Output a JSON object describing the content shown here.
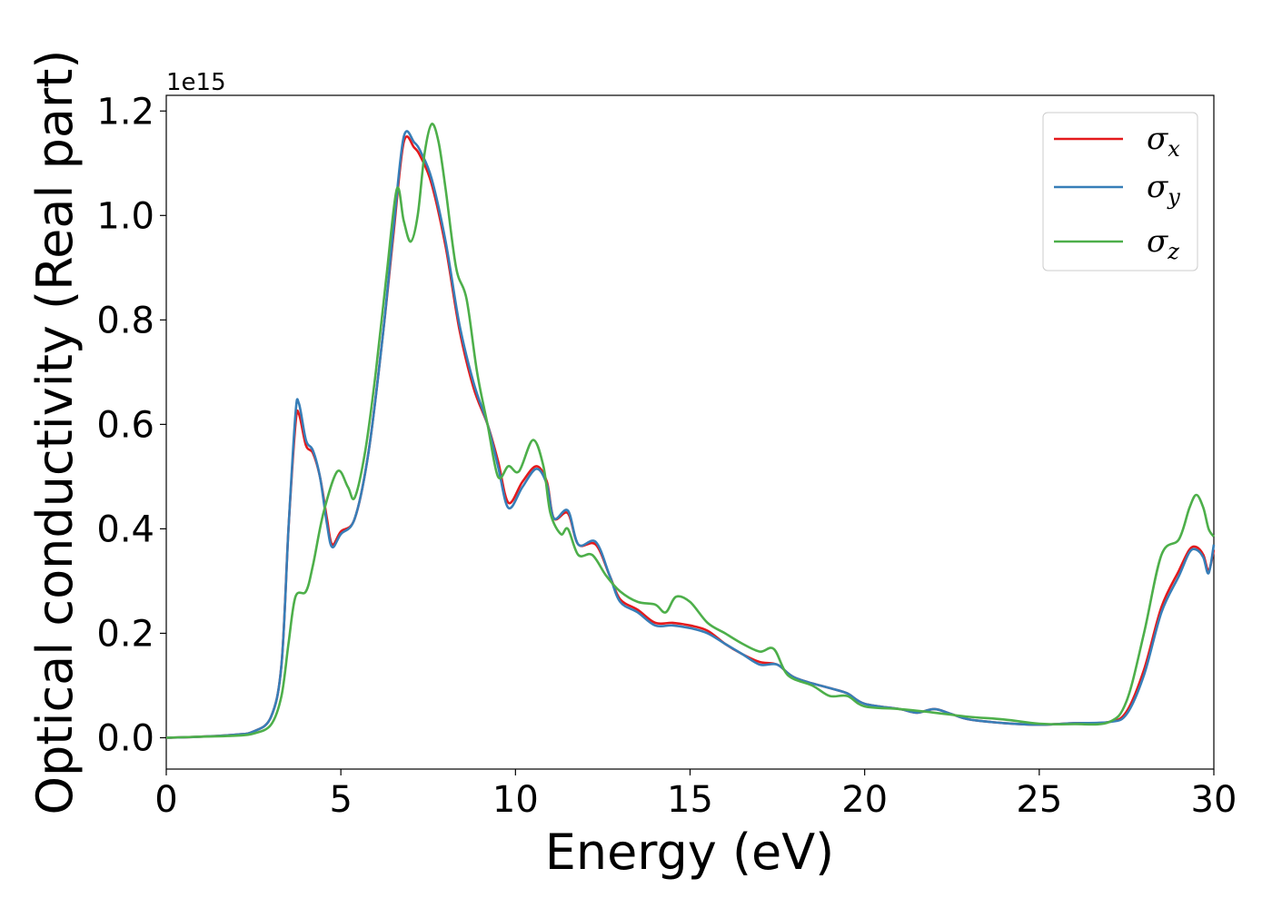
{
  "chart_data": {
    "type": "line",
    "xlabel": "Energy (eV)",
    "ylabel": "Optical conductivity (Real part)",
    "y_offset_label": "1e15",
    "xlim": [
      0,
      30
    ],
    "ylim": [
      -0.06,
      1.23
    ],
    "x_ticks": [
      0,
      5,
      10,
      15,
      20,
      25,
      30
    ],
    "x_tick_labels": [
      "0",
      "5",
      "10",
      "15",
      "20",
      "25",
      "30"
    ],
    "y_ticks": [
      0.0,
      0.2,
      0.4,
      0.6,
      0.8,
      1.0,
      1.2
    ],
    "y_tick_labels": [
      "0.0",
      "0.2",
      "0.4",
      "0.6",
      "0.8",
      "1.0",
      "1.2"
    ],
    "grid": false,
    "legend_position": "top-right",
    "series": [
      {
        "name": "σx",
        "sym": "σ",
        "sub": "x",
        "color": "#e41a1c",
        "points": [
          [
            0,
            0
          ],
          [
            1,
            0.002
          ],
          [
            2,
            0.006
          ],
          [
            2.5,
            0.012
          ],
          [
            3,
            0.04
          ],
          [
            3.3,
            0.14
          ],
          [
            3.5,
            0.4
          ],
          [
            3.7,
            0.6
          ],
          [
            3.8,
            0.62
          ],
          [
            4,
            0.56
          ],
          [
            4.2,
            0.545
          ],
          [
            4.4,
            0.5
          ],
          [
            4.6,
            0.42
          ],
          [
            4.75,
            0.37
          ],
          [
            5,
            0.395
          ],
          [
            5.4,
            0.42
          ],
          [
            5.8,
            0.55
          ],
          [
            6.2,
            0.77
          ],
          [
            6.5,
            0.96
          ],
          [
            6.8,
            1.14
          ],
          [
            7.1,
            1.13
          ],
          [
            7.3,
            1.11
          ],
          [
            7.6,
            1.06
          ],
          [
            8,
            0.94
          ],
          [
            8.4,
            0.78
          ],
          [
            8.8,
            0.67
          ],
          [
            9.2,
            0.6
          ],
          [
            9.5,
            0.53
          ],
          [
            9.8,
            0.45
          ],
          [
            10.2,
            0.49
          ],
          [
            10.6,
            0.52
          ],
          [
            10.9,
            0.49
          ],
          [
            11.1,
            0.42
          ],
          [
            11.5,
            0.43
          ],
          [
            11.8,
            0.37
          ],
          [
            12.3,
            0.37
          ],
          [
            12.7,
            0.31
          ],
          [
            13,
            0.265
          ],
          [
            13.5,
            0.245
          ],
          [
            14,
            0.22
          ],
          [
            14.5,
            0.22
          ],
          [
            15,
            0.215
          ],
          [
            15.5,
            0.205
          ],
          [
            16,
            0.18
          ],
          [
            16.5,
            0.16
          ],
          [
            17,
            0.145
          ],
          [
            17.5,
            0.14
          ],
          [
            18,
            0.115
          ],
          [
            19,
            0.095
          ],
          [
            19.5,
            0.085
          ],
          [
            20,
            0.065
          ],
          [
            21,
            0.055
          ],
          [
            21.5,
            0.048
          ],
          [
            22,
            0.055
          ],
          [
            22.5,
            0.045
          ],
          [
            23,
            0.035
          ],
          [
            24,
            0.028
          ],
          [
            25,
            0.025
          ],
          [
            26,
            0.028
          ],
          [
            27,
            0.03
          ],
          [
            27.5,
            0.05
          ],
          [
            28,
            0.13
          ],
          [
            28.5,
            0.25
          ],
          [
            29,
            0.32
          ],
          [
            29.3,
            0.36
          ],
          [
            29.5,
            0.365
          ],
          [
            29.7,
            0.35
          ],
          [
            29.85,
            0.32
          ],
          [
            30,
            0.36
          ]
        ]
      },
      {
        "name": "σy",
        "sym": "σ",
        "sub": "y",
        "color": "#377eb8",
        "points": [
          [
            0,
            0
          ],
          [
            1,
            0.002
          ],
          [
            2,
            0.006
          ],
          [
            2.5,
            0.012
          ],
          [
            3,
            0.04
          ],
          [
            3.3,
            0.14
          ],
          [
            3.5,
            0.4
          ],
          [
            3.7,
            0.62
          ],
          [
            3.8,
            0.64
          ],
          [
            4,
            0.57
          ],
          [
            4.2,
            0.55
          ],
          [
            4.4,
            0.5
          ],
          [
            4.6,
            0.41
          ],
          [
            4.75,
            0.365
          ],
          [
            5,
            0.39
          ],
          [
            5.4,
            0.42
          ],
          [
            5.8,
            0.55
          ],
          [
            6.2,
            0.77
          ],
          [
            6.5,
            0.97
          ],
          [
            6.8,
            1.15
          ],
          [
            7.1,
            1.14
          ],
          [
            7.3,
            1.12
          ],
          [
            7.6,
            1.07
          ],
          [
            8,
            0.95
          ],
          [
            8.4,
            0.79
          ],
          [
            8.8,
            0.68
          ],
          [
            9.2,
            0.6
          ],
          [
            9.5,
            0.52
          ],
          [
            9.8,
            0.44
          ],
          [
            10.2,
            0.48
          ],
          [
            10.6,
            0.515
          ],
          [
            10.9,
            0.485
          ],
          [
            11.1,
            0.42
          ],
          [
            11.5,
            0.435
          ],
          [
            11.8,
            0.37
          ],
          [
            12.3,
            0.375
          ],
          [
            12.7,
            0.31
          ],
          [
            13,
            0.26
          ],
          [
            13.5,
            0.24
          ],
          [
            14,
            0.215
          ],
          [
            14.5,
            0.215
          ],
          [
            15,
            0.21
          ],
          [
            15.5,
            0.2
          ],
          [
            16,
            0.18
          ],
          [
            16.5,
            0.16
          ],
          [
            17,
            0.14
          ],
          [
            17.5,
            0.14
          ],
          [
            18,
            0.115
          ],
          [
            19,
            0.095
          ],
          [
            19.5,
            0.085
          ],
          [
            20,
            0.065
          ],
          [
            21,
            0.055
          ],
          [
            21.5,
            0.048
          ],
          [
            22,
            0.055
          ],
          [
            22.5,
            0.045
          ],
          [
            23,
            0.035
          ],
          [
            24,
            0.028
          ],
          [
            25,
            0.025
          ],
          [
            26,
            0.028
          ],
          [
            27,
            0.03
          ],
          [
            27.5,
            0.045
          ],
          [
            28,
            0.12
          ],
          [
            28.5,
            0.24
          ],
          [
            29,
            0.31
          ],
          [
            29.3,
            0.355
          ],
          [
            29.5,
            0.36
          ],
          [
            29.7,
            0.345
          ],
          [
            29.85,
            0.315
          ],
          [
            30,
            0.37
          ]
        ]
      },
      {
        "name": "σz",
        "sym": "σ",
        "sub": "z",
        "color": "#4daf4a",
        "points": [
          [
            0,
            0
          ],
          [
            1,
            0.002
          ],
          [
            2,
            0.004
          ],
          [
            2.5,
            0.008
          ],
          [
            3,
            0.025
          ],
          [
            3.3,
            0.08
          ],
          [
            3.5,
            0.18
          ],
          [
            3.7,
            0.27
          ],
          [
            4,
            0.28
          ],
          [
            4.2,
            0.33
          ],
          [
            4.5,
            0.43
          ],
          [
            4.9,
            0.51
          ],
          [
            5.2,
            0.48
          ],
          [
            5.4,
            0.46
          ],
          [
            5.7,
            0.55
          ],
          [
            6,
            0.7
          ],
          [
            6.3,
            0.88
          ],
          [
            6.6,
            1.05
          ],
          [
            6.8,
            0.99
          ],
          [
            7,
            0.95
          ],
          [
            7.2,
            1.0
          ],
          [
            7.4,
            1.12
          ],
          [
            7.6,
            1.175
          ],
          [
            7.8,
            1.14
          ],
          [
            8,
            1.05
          ],
          [
            8.3,
            0.9
          ],
          [
            8.6,
            0.84
          ],
          [
            8.9,
            0.7
          ],
          [
            9.2,
            0.6
          ],
          [
            9.5,
            0.5
          ],
          [
            9.8,
            0.52
          ],
          [
            10.1,
            0.51
          ],
          [
            10.5,
            0.57
          ],
          [
            10.8,
            0.52
          ],
          [
            11,
            0.43
          ],
          [
            11.3,
            0.39
          ],
          [
            11.5,
            0.4
          ],
          [
            11.8,
            0.35
          ],
          [
            12.2,
            0.35
          ],
          [
            12.6,
            0.31
          ],
          [
            13,
            0.28
          ],
          [
            13.5,
            0.26
          ],
          [
            14,
            0.255
          ],
          [
            14.3,
            0.24
          ],
          [
            14.6,
            0.27
          ],
          [
            15,
            0.26
          ],
          [
            15.5,
            0.22
          ],
          [
            16,
            0.2
          ],
          [
            16.5,
            0.18
          ],
          [
            17,
            0.165
          ],
          [
            17.4,
            0.17
          ],
          [
            17.8,
            0.12
          ],
          [
            18.5,
            0.1
          ],
          [
            19,
            0.08
          ],
          [
            19.5,
            0.08
          ],
          [
            20,
            0.06
          ],
          [
            21,
            0.055
          ],
          [
            22,
            0.048
          ],
          [
            23,
            0.04
          ],
          [
            24,
            0.035
          ],
          [
            25,
            0.027
          ],
          [
            26,
            0.026
          ],
          [
            27,
            0.03
          ],
          [
            27.5,
            0.07
          ],
          [
            28,
            0.2
          ],
          [
            28.5,
            0.35
          ],
          [
            29,
            0.38
          ],
          [
            29.3,
            0.44
          ],
          [
            29.5,
            0.465
          ],
          [
            29.7,
            0.44
          ],
          [
            29.85,
            0.4
          ],
          [
            30,
            0.385
          ]
        ]
      }
    ]
  }
}
